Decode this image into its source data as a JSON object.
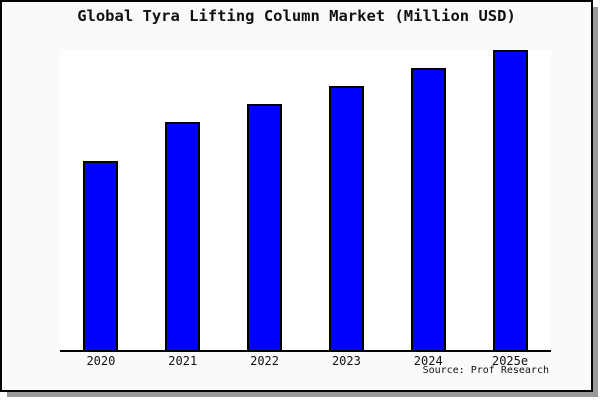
{
  "title": "Global Tyra Lifting Column Market (Million USD)",
  "source": "Source: Prof Research",
  "colors": {
    "background": "#fafafa",
    "plot_background": "#ffffff",
    "frame_border": "#000000",
    "frame_shadow": "#999999",
    "axis_line": "#000000",
    "bar_fill": "#0000ff",
    "bar_border": "#000000",
    "text": "#111111"
  },
  "chart_data": {
    "type": "bar",
    "title": "Global Tyra Lifting Column Market (Million USD)",
    "categories": [
      "2020",
      "2021",
      "2022",
      "2023",
      "2024",
      "2025e"
    ],
    "values": [
      63,
      76,
      82,
      88,
      94,
      100
    ],
    "values_note": "Chart shows no y-axis scale, ticks or data labels; values are bar heights as percent of the tallest bar (2025e = 100)",
    "xlabel": "",
    "ylabel": "",
    "y_axis_ticks": "none",
    "grid": false,
    "legend": false,
    "annotation": "Source: Prof Research"
  }
}
